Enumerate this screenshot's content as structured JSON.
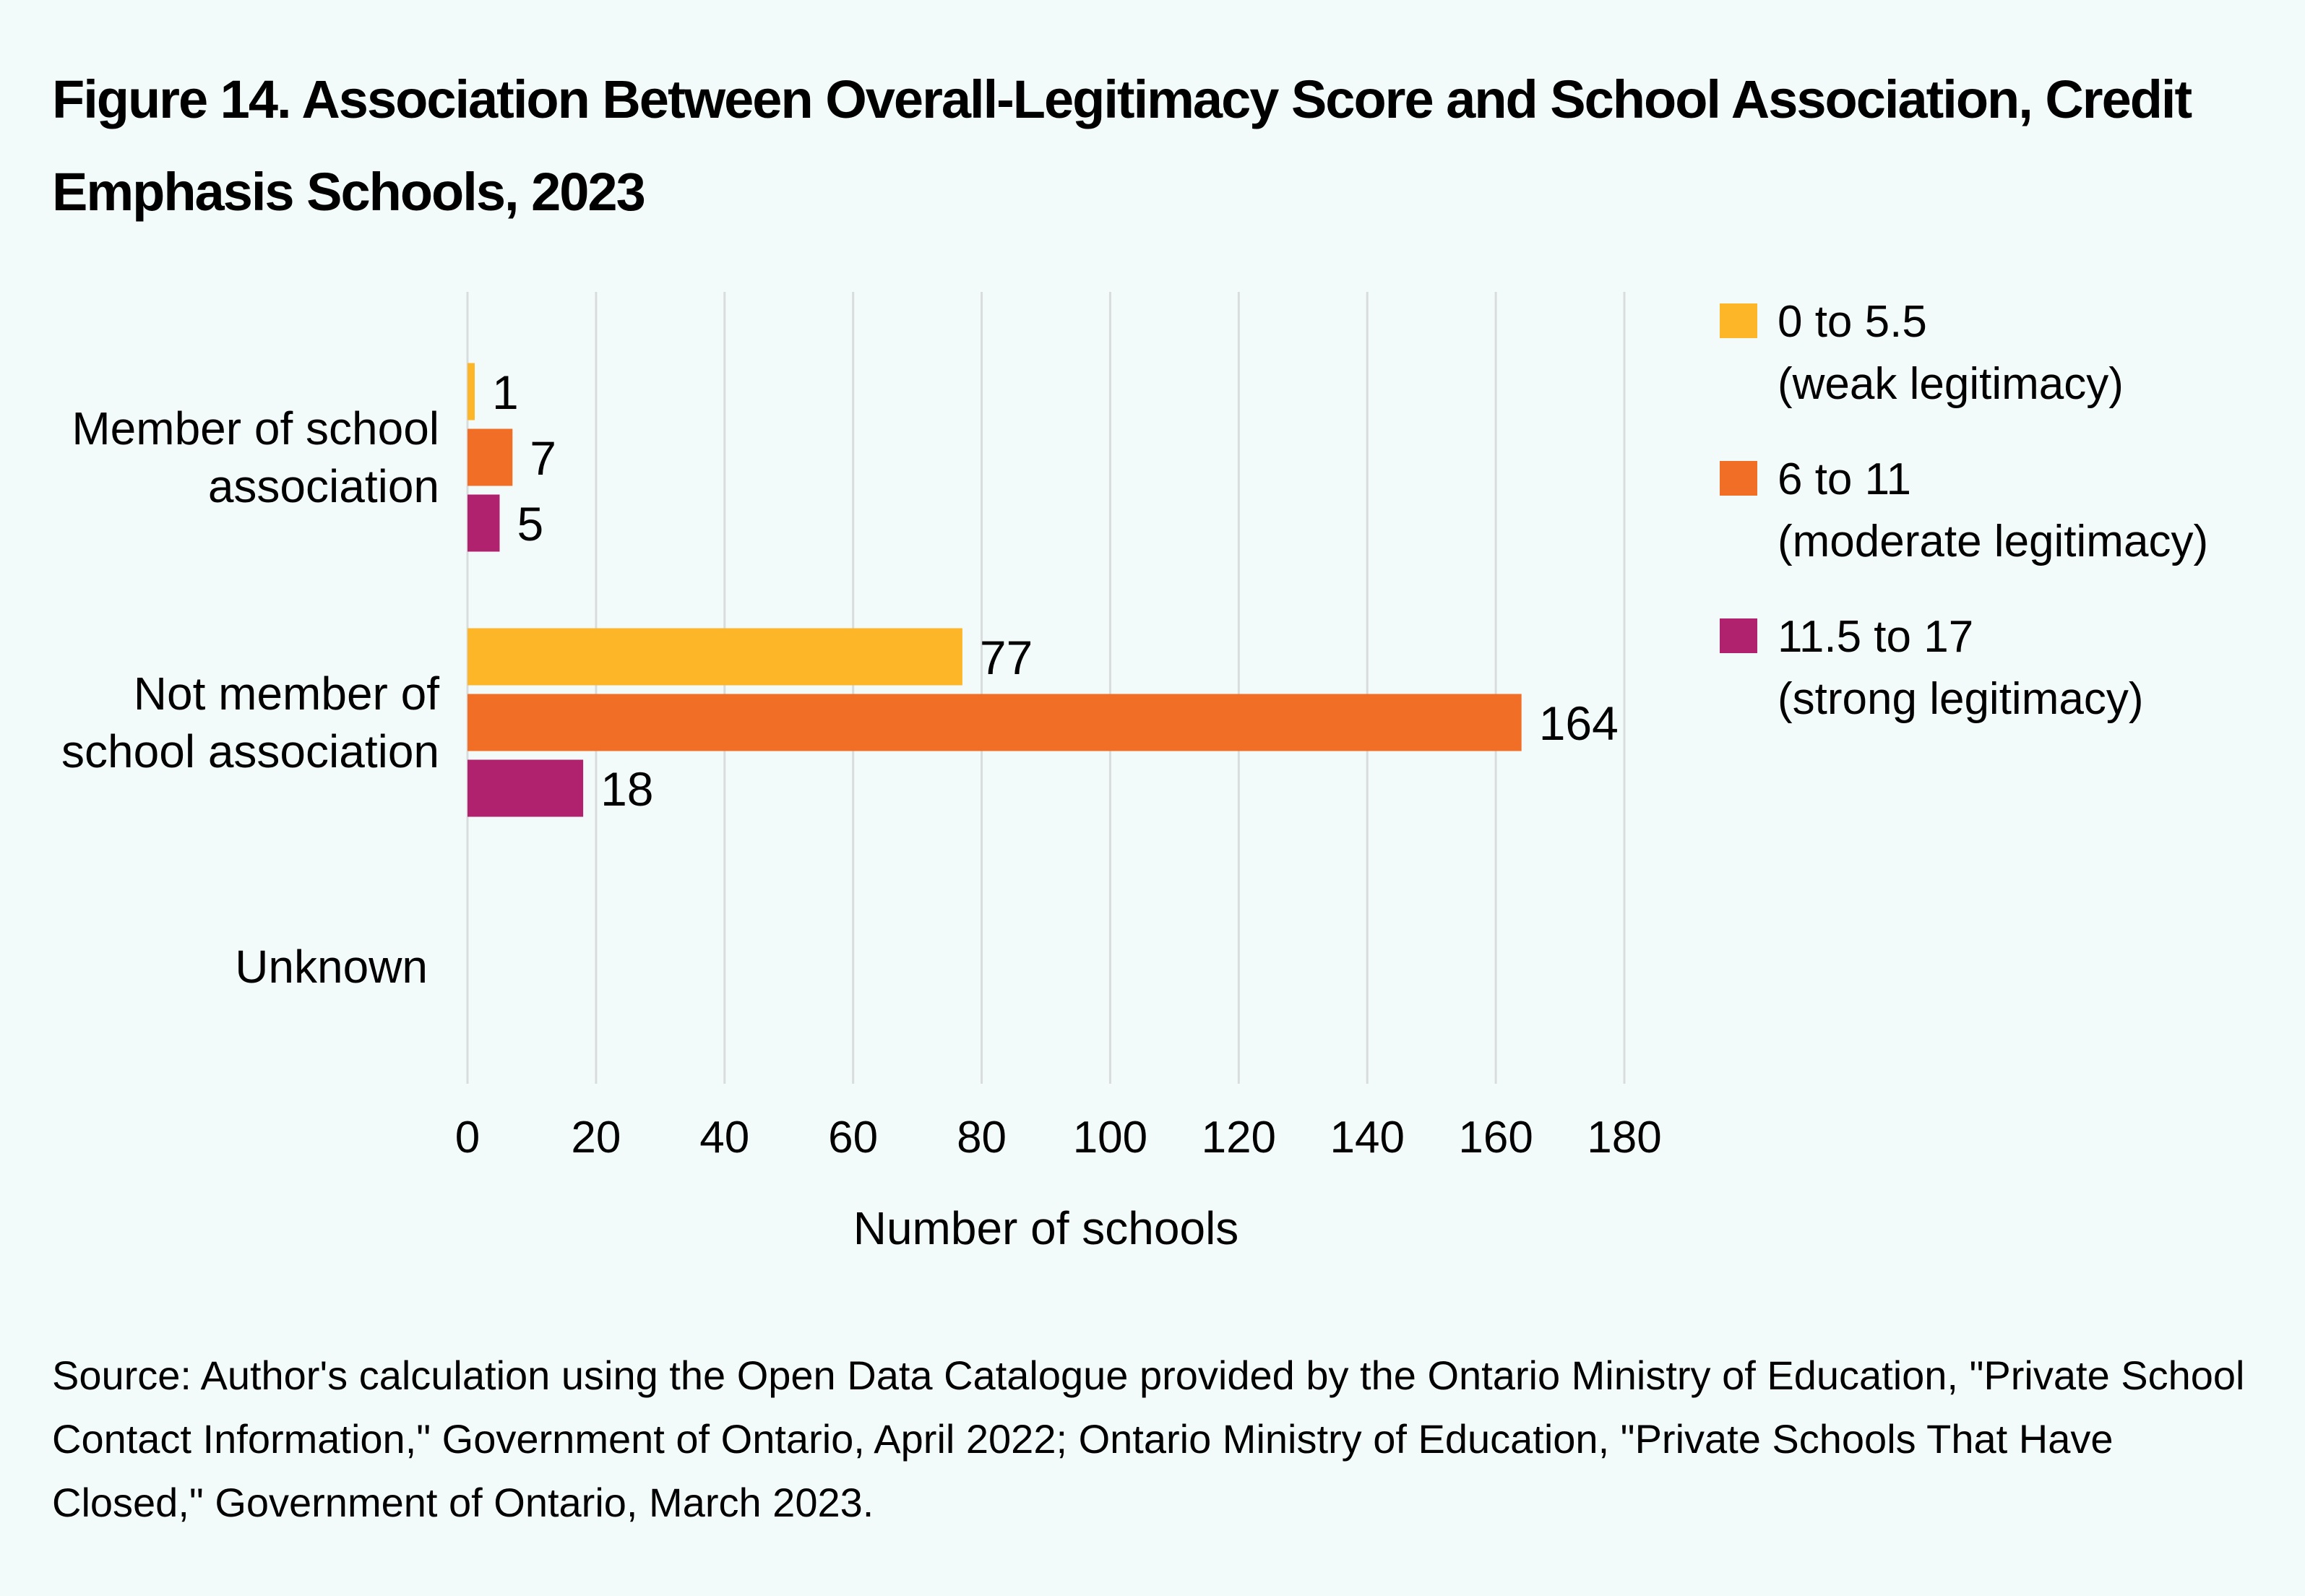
{
  "title": "Figure 14. Association Between Overall-Legitimacy Score and School Association, Credit Emphasis Schools, 2023",
  "source": "Source: Author's calculation using the Open Data Catalogue provided by the Ontario Ministry of Education, \"Private School Contact Information,\" Government of Ontario, April 2022; Ontario Ministry of Education, \"Private Schools That Have Closed,\" Government of Ontario, March 2023.",
  "chart_data": {
    "type": "bar",
    "orientation": "horizontal",
    "title": "Figure 14. Association Between Overall-Legitimacy Score and School Association, Credit Emphasis Schools, 2023",
    "xlabel": "Number of schools",
    "ylabel": "",
    "xlim": [
      0,
      180
    ],
    "xticks": [
      0,
      20,
      40,
      60,
      80,
      100,
      120,
      140,
      160,
      180
    ],
    "xtick_labels": [
      "0",
      "20",
      "40",
      "60",
      "80",
      "100",
      "120",
      "140",
      "160",
      "180"
    ],
    "grid": true,
    "legend_position": "right",
    "categories": [
      {
        "label_lines": [
          "Member of school",
          "association"
        ]
      },
      {
        "label_lines": [
          "Not member of",
          "school association"
        ]
      },
      {
        "label_lines": [
          "Unknown"
        ]
      }
    ],
    "series": [
      {
        "name": "0 to 5.5 (weak legitimacy)",
        "legend_lines": [
          "0 to 5.5",
          "(weak legitimacy)"
        ],
        "color": "#fdb627",
        "values": [
          1,
          77,
          null
        ]
      },
      {
        "name": "6 to 11 (moderate legitimacy)",
        "legend_lines": [
          "6 to 11",
          "(moderate legitimacy)"
        ],
        "color": "#f16e27",
        "values": [
          7,
          164,
          null
        ]
      },
      {
        "name": "11.5 to 17 (strong legitimacy)",
        "legend_lines": [
          "11.5 to 17",
          "(strong legitimacy)"
        ],
        "color": "#b0226e",
        "values": [
          5,
          18,
          null
        ]
      }
    ],
    "data_labels": [
      [
        "1",
        "77",
        ""
      ],
      [
        "7",
        "164",
        ""
      ],
      [
        "5",
        "18",
        ""
      ]
    ]
  }
}
